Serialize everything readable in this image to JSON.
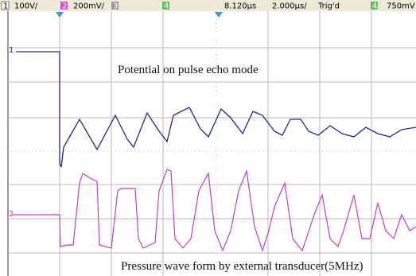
{
  "status_bar": {
    "ch1_badge": "1",
    "ch1_scale": "100V/",
    "ch2_badge": "2",
    "ch2_scale": "200mV/",
    "ch3_badge": "3",
    "ch4_badge": "4",
    "trigger_position": "8.120µs",
    "timebase": "2.000µs/",
    "trigger_status": "Trig'd",
    "trigger_badge": "4",
    "trigger_level": "750mV"
  },
  "markers": {
    "ch1": "1",
    "ch2": "2"
  },
  "annotations": [
    "Potential on pulse echo mode",
    "Pressure wave form by external transducer(5MHz)"
  ]
}
